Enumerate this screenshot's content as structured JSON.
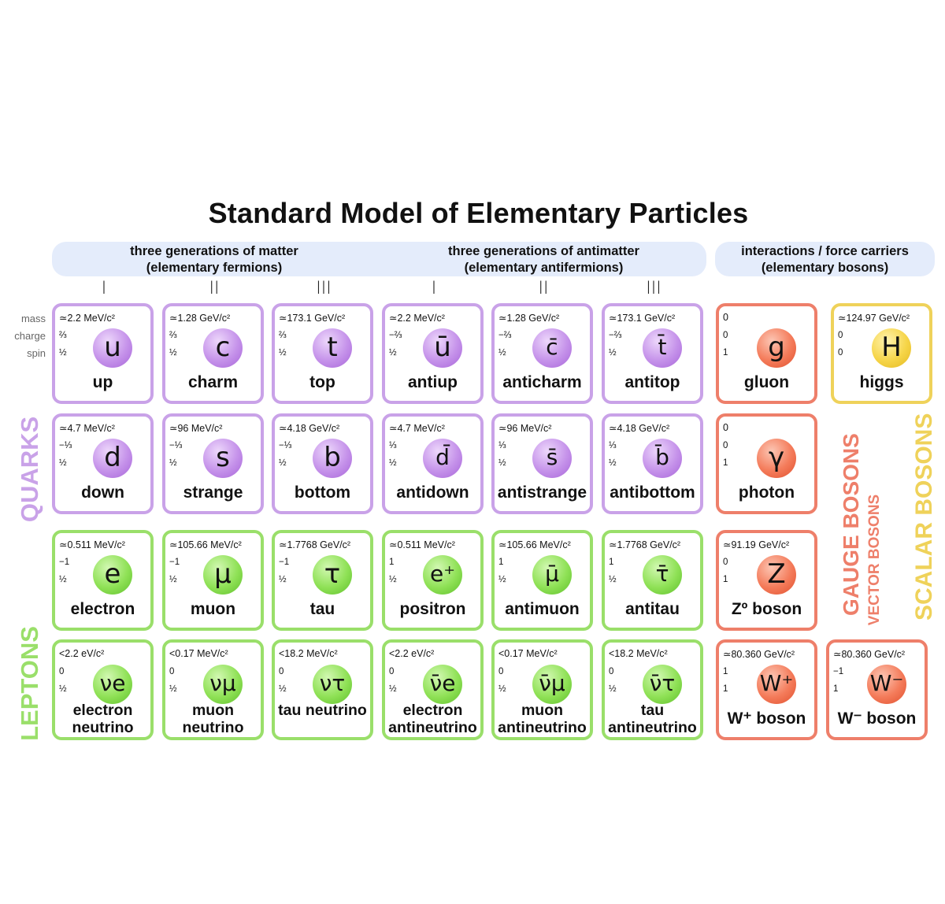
{
  "title": "Standard Model of Elementary Particles",
  "groups": {
    "matter_line1": "three generations of matter",
    "matter_line2": "(elementary fermions)",
    "antimatter_line1": "three generations of antimatter",
    "antimatter_line2": "(elementary antifermions)",
    "bosons_line1": "interactions / force carriers",
    "bosons_line2": "(elementary bosons)"
  },
  "generations": [
    "I",
    "II",
    "III",
    "I",
    "II",
    "III"
  ],
  "legend": {
    "mass": "mass",
    "charge": "charge",
    "spin": "spin"
  },
  "side_labels": {
    "quarks": "QUARKS",
    "leptons": "LEPTONS",
    "gauge": "GAUGE BOSONS",
    "vector": "VECTOR BOSONS",
    "scalar": "SCALAR BOSONS"
  },
  "colors": {
    "quark": "#c9a2e8",
    "lepton": "#9adf6a",
    "gauge": "#ee7f6a",
    "scalar": "#efd25a",
    "header_bg": "#e4ecfb"
  },
  "particles": [
    {
      "kind": "quark",
      "mass": "≃2.2 MeV/c²",
      "charge": "⅔",
      "spin": "½",
      "symbol": "u",
      "name": "up"
    },
    {
      "kind": "quark",
      "mass": "≃1.28 GeV/c²",
      "charge": "⅔",
      "spin": "½",
      "symbol": "c",
      "name": "charm"
    },
    {
      "kind": "quark",
      "mass": "≃173.1 GeV/c²",
      "charge": "⅔",
      "spin": "½",
      "symbol": "t",
      "name": "top"
    },
    {
      "kind": "quark",
      "mass": "≃2.2 MeV/c²",
      "charge": "−⅔",
      "spin": "½",
      "symbol": "ū",
      "name": "antiup"
    },
    {
      "kind": "quark",
      "mass": "≃1.28 GeV/c²",
      "charge": "−⅔",
      "spin": "½",
      "symbol": "c̄",
      "name": "anticharm"
    },
    {
      "kind": "quark",
      "mass": "≃173.1 GeV/c²",
      "charge": "−⅔",
      "spin": "½",
      "symbol": "t̄",
      "name": "antitop"
    },
    {
      "kind": "gauge",
      "mass": "0",
      "charge": "0",
      "spin": "1",
      "symbol": "g",
      "name": "gluon"
    },
    {
      "kind": "scalar",
      "mass": "≃124.97 GeV/c²",
      "charge": "0",
      "spin": "0",
      "symbol": "H",
      "name": "higgs"
    },
    {
      "kind": "quark",
      "mass": "≃4.7 MeV/c²",
      "charge": "−⅓",
      "spin": "½",
      "symbol": "d",
      "name": "down"
    },
    {
      "kind": "quark",
      "mass": "≃96 MeV/c²",
      "charge": "−⅓",
      "spin": "½",
      "symbol": "s",
      "name": "strange"
    },
    {
      "kind": "quark",
      "mass": "≃4.18 GeV/c²",
      "charge": "−⅓",
      "spin": "½",
      "symbol": "b",
      "name": "bottom"
    },
    {
      "kind": "quark",
      "mass": "≃4.7 MeV/c²",
      "charge": "⅓",
      "spin": "½",
      "symbol": "d̄",
      "name": "antidown"
    },
    {
      "kind": "quark",
      "mass": "≃96 MeV/c²",
      "charge": "⅓",
      "spin": "½",
      "symbol": "s̄",
      "name": "antistrange"
    },
    {
      "kind": "quark",
      "mass": "≃4.18 GeV/c²",
      "charge": "⅓",
      "spin": "½",
      "symbol": "b̄",
      "name": "antibottom"
    },
    {
      "kind": "gauge",
      "mass": "0",
      "charge": "0",
      "spin": "1",
      "symbol": "γ",
      "name": "photon"
    },
    {
      "kind": "lepton",
      "mass": "≃0.511 MeV/c²",
      "charge": "−1",
      "spin": "½",
      "symbol": "e",
      "name": "electron"
    },
    {
      "kind": "lepton",
      "mass": "≃105.66 MeV/c²",
      "charge": "−1",
      "spin": "½",
      "symbol": "μ",
      "name": "muon"
    },
    {
      "kind": "lepton",
      "mass": "≃1.7768 GeV/c²",
      "charge": "−1",
      "spin": "½",
      "symbol": "τ",
      "name": "tau"
    },
    {
      "kind": "lepton",
      "mass": "≃0.511 MeV/c²",
      "charge": "1",
      "spin": "½",
      "symbol": "e⁺",
      "name": "positron"
    },
    {
      "kind": "lepton",
      "mass": "≃105.66 MeV/c²",
      "charge": "1",
      "spin": "½",
      "symbol": "μ̄",
      "name": "antimuon"
    },
    {
      "kind": "lepton",
      "mass": "≃1.7768 GeV/c²",
      "charge": "1",
      "spin": "½",
      "symbol": "τ̄",
      "name": "antitau"
    },
    {
      "kind": "gauge",
      "mass": "≃91.19 GeV/c²",
      "charge": "0",
      "spin": "1",
      "symbol": "Z",
      "name": "Zº boson"
    },
    {
      "kind": "lepton",
      "mass": "<2.2 eV/c²",
      "charge": "0",
      "spin": "½",
      "symbol": "νe",
      "name": "electron neutrino"
    },
    {
      "kind": "lepton",
      "mass": "<0.17 MeV/c²",
      "charge": "0",
      "spin": "½",
      "symbol": "νμ",
      "name": "muon neutrino"
    },
    {
      "kind": "lepton",
      "mass": "<18.2 MeV/c²",
      "charge": "0",
      "spin": "½",
      "symbol": "ντ",
      "name": "tau neutrino"
    },
    {
      "kind": "lepton",
      "mass": "<2.2 eV/c²",
      "charge": "0",
      "spin": "½",
      "symbol": "ν̄e",
      "name": "electron antineutrino"
    },
    {
      "kind": "lepton",
      "mass": "<0.17 MeV/c²",
      "charge": "0",
      "spin": "½",
      "symbol": "ν̄μ",
      "name": "muon antineutrino"
    },
    {
      "kind": "lepton",
      "mass": "<18.2 MeV/c²",
      "charge": "0",
      "spin": "½",
      "symbol": "ν̄τ",
      "name": "tau antineutrino"
    },
    {
      "kind": "gauge",
      "mass": "≃80.360 GeV/c²",
      "charge": "1",
      "spin": "1",
      "symbol": "W⁺",
      "name": "W⁺ boson"
    },
    {
      "kind": "gauge",
      "mass": "≃80.360 GeV/c²",
      "charge": "−1",
      "spin": "1",
      "symbol": "W⁻",
      "name": "W⁻ boson"
    }
  ]
}
